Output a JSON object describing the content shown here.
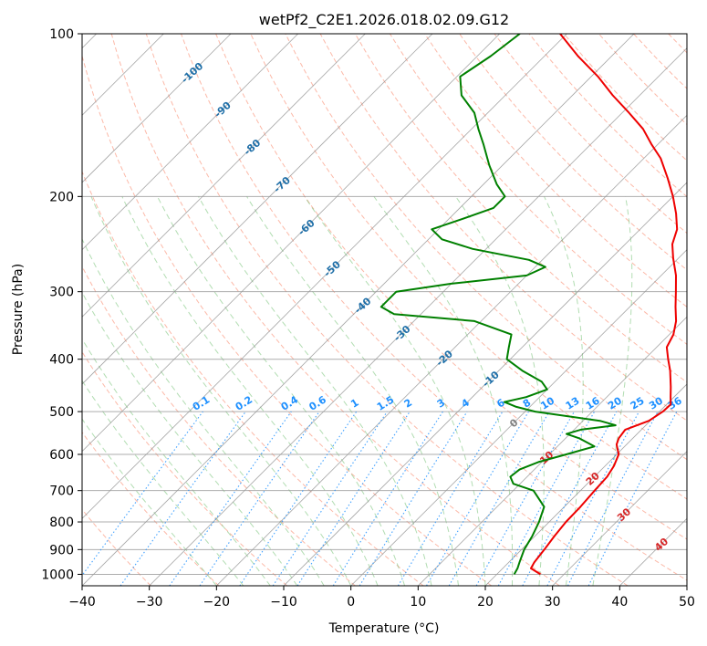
{
  "chart_data": {
    "type": "line",
    "subtype": "skew-T log-P diagram",
    "title": "wetPf2_C2E1.2026.018.02.09.G12",
    "xlabel": "Temperature (°C)",
    "ylabel": "Pressure (hPa)",
    "xlim": [
      -40,
      50
    ],
    "ylim": [
      1050,
      100
    ],
    "y_scale": "log",
    "grid": true,
    "x_ticks": [
      -40,
      -30,
      -20,
      -10,
      0,
      10,
      20,
      30,
      40,
      50
    ],
    "x_tick_labels": [
      "−40",
      "−30",
      "−20",
      "−10",
      "0",
      "10",
      "20",
      "30",
      "40",
      "50"
    ],
    "y_ticks": [
      1000,
      900,
      800,
      700,
      600,
      500,
      400,
      300,
      200,
      100
    ],
    "y_tick_labels": [
      "1000",
      "900",
      "800",
      "700",
      "600",
      "500",
      "400",
      "300",
      "200",
      "100"
    ],
    "isotherm_labels": [
      "-100",
      "-90",
      "-80",
      "-70",
      "-60",
      "-50",
      "-40",
      "-30",
      "-20",
      "-10",
      "0",
      "10",
      "20",
      "30",
      "40"
    ],
    "mixing_ratio_labels": [
      "0.1",
      "0.2",
      "0.4",
      "0.6",
      "1",
      "1.5",
      "2",
      "3",
      "4",
      "6",
      "8",
      "10",
      "13",
      "16",
      "20",
      "25",
      "30",
      "36"
    ],
    "colors": {
      "temperature": "#ee0000",
      "dewpoint": "#008000",
      "isotherm_labels_cold": "#1f6fa8",
      "isotherm_labels_warm": "#d62728",
      "freezing_label": "#808080",
      "mixing_ratio": "#1e90ff",
      "dry_adiabat": "#fa8060",
      "moist_adiabat": "#66bb66"
    },
    "series": [
      {
        "key": "temperature",
        "points": [
          {
            "p": 1000,
            "t": 26.5
          },
          {
            "p": 975,
            "t": 24.2
          },
          {
            "p": 950,
            "t": 23.8
          },
          {
            "p": 900,
            "t": 23.4
          },
          {
            "p": 850,
            "t": 22.9
          },
          {
            "p": 800,
            "t": 22.5
          },
          {
            "p": 750,
            "t": 22.4
          },
          {
            "p": 700,
            "t": 22.1
          },
          {
            "p": 660,
            "t": 21.9
          },
          {
            "p": 630,
            "t": 21.3
          },
          {
            "p": 600,
            "t": 20.3
          },
          {
            "p": 575,
            "t": 18.5
          },
          {
            "p": 560,
            "t": 17.9
          },
          {
            "p": 540,
            "t": 17.6
          },
          {
            "p": 520,
            "t": 19.8
          },
          {
            "p": 500,
            "t": 20.5
          },
          {
            "p": 485,
            "t": 20.6
          },
          {
            "p": 470,
            "t": 19.5
          },
          {
            "p": 450,
            "t": 18.0
          },
          {
            "p": 420,
            "t": 15.5
          },
          {
            "p": 400,
            "t": 13.5
          },
          {
            "p": 380,
            "t": 11.5
          },
          {
            "p": 360,
            "t": 10.6
          },
          {
            "p": 340,
            "t": 9.0
          },
          {
            "p": 320,
            "t": 6.8
          },
          {
            "p": 300,
            "t": 4.6
          },
          {
            "p": 280,
            "t": 2.2
          },
          {
            "p": 260,
            "t": -0.8
          },
          {
            "p": 245,
            "t": -3.0
          },
          {
            "p": 230,
            "t": -4.5
          },
          {
            "p": 215,
            "t": -7.0
          },
          {
            "p": 200,
            "t": -10.0
          },
          {
            "p": 185,
            "t": -13.5
          },
          {
            "p": 170,
            "t": -17.5
          },
          {
            "p": 160,
            "t": -21.0
          },
          {
            "p": 150,
            "t": -24.5
          },
          {
            "p": 140,
            "t": -29.0
          },
          {
            "p": 130,
            "t": -34.0
          },
          {
            "p": 120,
            "t": -39.0
          },
          {
            "p": 110,
            "t": -45.0
          },
          {
            "p": 100,
            "t": -51.0
          }
        ]
      },
      {
        "key": "dewpoint",
        "points": [
          {
            "p": 1000,
            "t": 22.6
          },
          {
            "p": 975,
            "t": 22.2
          },
          {
            "p": 950,
            "t": 21.6
          },
          {
            "p": 925,
            "t": 21.0
          },
          {
            "p": 900,
            "t": 20.4
          },
          {
            "p": 850,
            "t": 19.6
          },
          {
            "p": 800,
            "t": 18.5
          },
          {
            "p": 750,
            "t": 17.0
          },
          {
            "p": 700,
            "t": 13.0
          },
          {
            "p": 680,
            "t": 9.0
          },
          {
            "p": 660,
            "t": 7.5
          },
          {
            "p": 640,
            "t": 7.8
          },
          {
            "p": 620,
            "t": 9.5
          },
          {
            "p": 600,
            "t": 12.5
          },
          {
            "p": 580,
            "t": 15.5
          },
          {
            "p": 560,
            "t": 12.0
          },
          {
            "p": 550,
            "t": 9.5
          },
          {
            "p": 540,
            "t": 11.0
          },
          {
            "p": 530,
            "t": 15.5
          },
          {
            "p": 520,
            "t": 12.5
          },
          {
            "p": 500,
            "t": 1.5
          },
          {
            "p": 490,
            "t": -2.0
          },
          {
            "p": 480,
            "t": -4.5
          },
          {
            "p": 470,
            "t": -2.0
          },
          {
            "p": 455,
            "t": 0.0
          },
          {
            "p": 440,
            "t": -2.0
          },
          {
            "p": 420,
            "t": -6.5
          },
          {
            "p": 400,
            "t": -10.5
          },
          {
            "p": 380,
            "t": -12.0
          },
          {
            "p": 360,
            "t": -13.5
          },
          {
            "p": 340,
            "t": -21.0
          },
          {
            "p": 330,
            "t": -34.0
          },
          {
            "p": 320,
            "t": -37.0
          },
          {
            "p": 300,
            "t": -37.0
          },
          {
            "p": 290,
            "t": -30.0
          },
          {
            "p": 280,
            "t": -20.0
          },
          {
            "p": 270,
            "t": -18.5
          },
          {
            "p": 262,
            "t": -22.0
          },
          {
            "p": 250,
            "t": -32.0
          },
          {
            "p": 240,
            "t": -38.0
          },
          {
            "p": 230,
            "t": -41.0
          },
          {
            "p": 220,
            "t": -38.0
          },
          {
            "p": 210,
            "t": -35.0
          },
          {
            "p": 200,
            "t": -35.0
          },
          {
            "p": 190,
            "t": -38.0
          },
          {
            "p": 175,
            "t": -42.0
          },
          {
            "p": 160,
            "t": -46.0
          },
          {
            "p": 150,
            "t": -49.0
          },
          {
            "p": 140,
            "t": -52.0
          },
          {
            "p": 130,
            "t": -56.5
          },
          {
            "p": 120,
            "t": -59.5
          },
          {
            "p": 110,
            "t": -58.0
          },
          {
            "p": 100,
            "t": -57.0
          }
        ]
      }
    ]
  }
}
